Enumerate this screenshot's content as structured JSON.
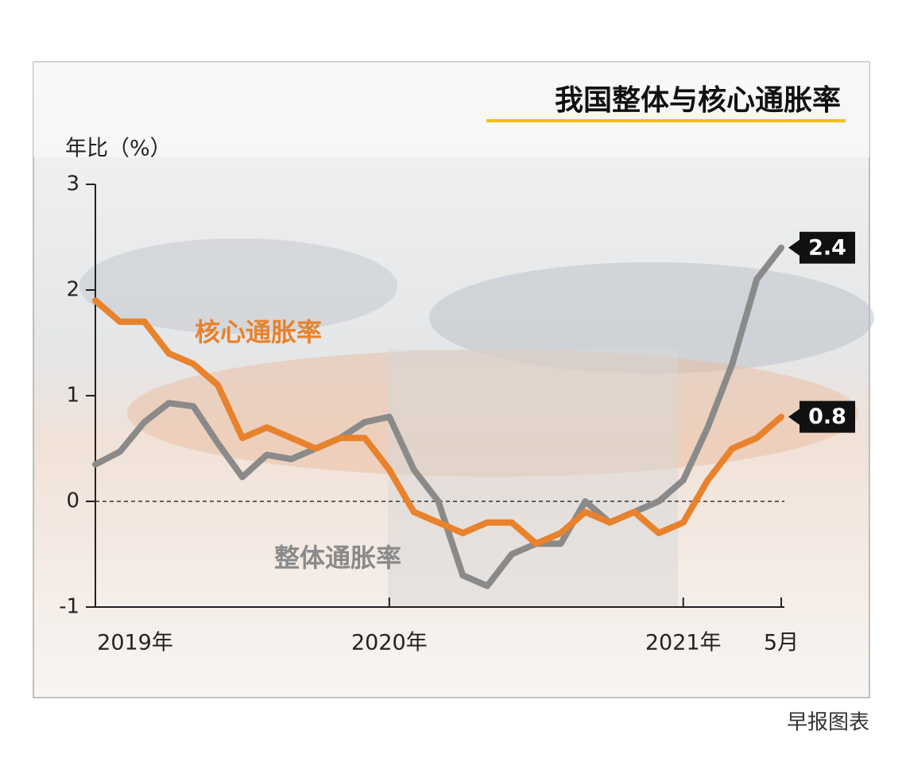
{
  "chart_data": {
    "type": "line",
    "title": "我国整体与核心通胀率",
    "y_label": "年比（%）",
    "source": "早报图表",
    "categories": [
      "2019年",
      null,
      null,
      null,
      null,
      null,
      null,
      null,
      null,
      null,
      null,
      null,
      "2020年",
      null,
      null,
      null,
      null,
      null,
      null,
      null,
      null,
      null,
      null,
      null,
      "2021年",
      null,
      null,
      null,
      "5月"
    ],
    "series": [
      {
        "name": "核心通胀率",
        "color": "#e8822c",
        "values": [
          1.9,
          1.7,
          1.7,
          1.4,
          1.3,
          1.1,
          0.6,
          0.7,
          0.6,
          0.5,
          0.6,
          0.6,
          0.3,
          -0.1,
          -0.2,
          -0.3,
          -0.2,
          -0.2,
          -0.4,
          -0.3,
          -0.1,
          -0.2,
          -0.1,
          -0.3,
          -0.2,
          0.2,
          0.5,
          0.6,
          0.8
        ]
      },
      {
        "name": "整体通胀率",
        "color": "#8a8a8a",
        "values": [
          0.35,
          0.47,
          0.75,
          0.93,
          0.9,
          0.55,
          0.23,
          0.44,
          0.4,
          0.5,
          0.6,
          0.75,
          0.8,
          0.3,
          0.0,
          -0.7,
          -0.8,
          -0.5,
          -0.4,
          -0.4,
          0.0,
          -0.2,
          -0.1,
          0.0,
          0.2,
          0.7,
          1.3,
          2.1,
          2.4
        ]
      }
    ],
    "ylim": [
      -1,
      3
    ],
    "yticks": [
      -1,
      0,
      1,
      2,
      3
    ]
  }
}
